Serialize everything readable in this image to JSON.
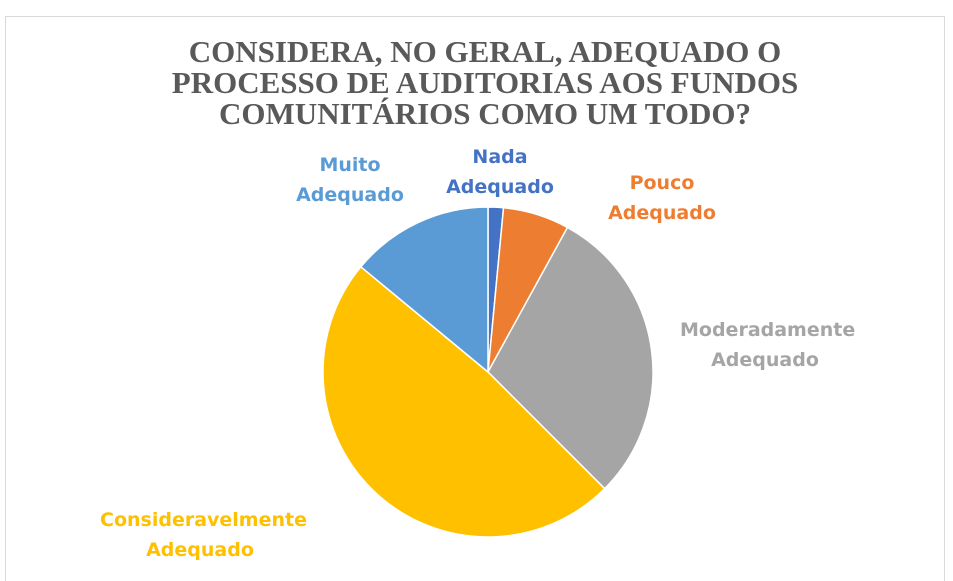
{
  "chart_data": {
    "type": "pie",
    "title": "CONSIDERA, NO GERAL, ADEQUADO O PROCESSO DE AUDITORIAS AOS FUNDOS COMUNITÁRIOS COMO UM TODO?",
    "categories": [
      "Nada Adequado",
      "Pouco Adequado",
      "Moderadamente Adequado",
      "Consideravelmente Adequado",
      "Muito Adequado"
    ],
    "values": [
      1.5,
      6.5,
      29.5,
      48.5,
      14
    ],
    "colors": [
      "#4472c4",
      "#ed7d31",
      "#a5a5a5",
      "#ffc000",
      "#5b9bd5"
    ]
  }
}
